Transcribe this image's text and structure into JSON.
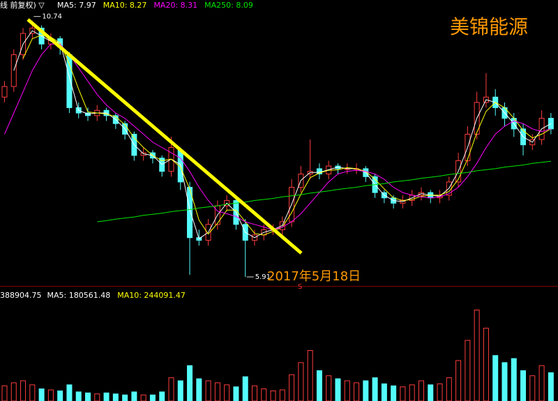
{
  "chart_data": {
    "type": "candlestick",
    "title": "线 前复权) ▽",
    "stock_name": "美锦能源",
    "date_annotation": "2017年5月18日",
    "signal": "S",
    "high_annotation": 10.74,
    "low_annotation": 5.91,
    "up_color": "#ff3c3c",
    "down_color": "#54fcfc",
    "ylim": [
      5.74,
      11.13
    ],
    "open": [
      9.3,
      9.5,
      10.1,
      10.5,
      10.6,
      10.3,
      10.4,
      10.1,
      9.1,
      9.0,
      8.95,
      9.05,
      8.95,
      8.8,
      8.6,
      8.2,
      8.25,
      8.15,
      7.9,
      8.3,
      7.6,
      6.65,
      6.6,
      6.9,
      7.25,
      7.35,
      6.9,
      6.6,
      6.7,
      6.8,
      6.8,
      6.95,
      7.6,
      7.85,
      7.95,
      7.85,
      8.0,
      7.95,
      7.95,
      7.95,
      7.8,
      7.5,
      7.4,
      7.3,
      7.35,
      7.45,
      7.5,
      7.4,
      7.45,
      7.7,
      8.1,
      8.6,
      9.2,
      9.3,
      9.1,
      8.9,
      8.7,
      8.4,
      8.5,
      8.9
    ],
    "high": [
      9.6,
      10.2,
      10.6,
      10.74,
      10.65,
      10.5,
      10.45,
      10.15,
      9.2,
      9.1,
      9.15,
      9.1,
      9.0,
      8.85,
      8.65,
      8.35,
      8.3,
      8.2,
      8.55,
      8.35,
      7.7,
      6.8,
      7.0,
      7.35,
      7.45,
      7.4,
      7.0,
      6.8,
      6.9,
      6.9,
      7.05,
      7.75,
      8.0,
      8.5,
      8.05,
      8.1,
      8.05,
      8.05,
      8.05,
      8.0,
      7.85,
      7.55,
      7.45,
      7.45,
      7.55,
      7.6,
      7.55,
      7.55,
      7.8,
      8.25,
      8.75,
      9.4,
      9.75,
      9.45,
      9.2,
      9.0,
      8.8,
      8.6,
      9.05,
      9.0
    ],
    "low": [
      9.2,
      9.4,
      10.0,
      10.4,
      10.2,
      10.2,
      10.1,
      9.0,
      8.9,
      8.85,
      8.85,
      8.85,
      8.7,
      8.5,
      8.1,
      8.1,
      8.05,
      7.8,
      7.8,
      7.55,
      5.95,
      6.5,
      6.5,
      6.8,
      7.15,
      6.8,
      5.91,
      6.5,
      6.6,
      6.7,
      6.7,
      6.85,
      7.5,
      7.75,
      7.75,
      7.75,
      7.85,
      7.85,
      7.85,
      7.7,
      7.4,
      7.3,
      7.2,
      7.2,
      7.25,
      7.35,
      7.3,
      7.3,
      7.35,
      7.6,
      8.0,
      8.5,
      9.1,
      8.95,
      8.75,
      8.55,
      8.2,
      8.3,
      8.4,
      8.6
    ],
    "close": [
      9.5,
      10.1,
      10.5,
      10.6,
      10.3,
      10.4,
      10.25,
      9.1,
      9.0,
      8.95,
      9.05,
      8.95,
      8.8,
      8.6,
      8.2,
      8.25,
      8.15,
      7.9,
      8.35,
      7.7,
      6.65,
      6.6,
      6.9,
      7.25,
      7.35,
      6.9,
      6.6,
      6.7,
      6.8,
      6.8,
      6.95,
      7.6,
      7.85,
      7.9,
      7.85,
      8.0,
      7.95,
      7.95,
      7.95,
      7.8,
      7.5,
      7.4,
      7.3,
      7.35,
      7.45,
      7.5,
      7.4,
      7.45,
      7.7,
      8.1,
      8.6,
      9.2,
      9.3,
      9.1,
      8.9,
      8.7,
      8.4,
      8.5,
      8.9,
      8.7
    ],
    "series": [
      {
        "name": "MA5",
        "legend": "MA5: 7.97",
        "color": "#ffffff",
        "values": [
          null,
          9.8,
          10.3,
          10.55,
          10.45,
          10.35,
          10.33,
          9.68,
          9.05,
          8.98,
          9.0,
          9.0,
          8.88,
          8.7,
          8.4,
          8.23,
          8.2,
          8.03,
          8.13,
          8.03,
          7.18,
          6.63,
          6.75,
          7.08,
          7.3,
          7.13,
          6.75,
          6.65,
          6.75,
          6.8,
          6.88,
          7.28,
          7.73,
          7.88,
          7.88,
          7.93,
          7.98,
          7.95,
          7.95,
          7.88,
          7.65,
          7.45,
          7.35,
          7.33,
          7.4,
          7.48,
          7.45,
          7.43,
          7.58,
          7.9,
          8.35,
          8.9,
          9.25,
          9.2,
          9.0,
          8.8,
          8.55,
          8.45,
          8.7,
          8.8
        ]
      },
      {
        "name": "MA10",
        "legend": "MA10: 8.27",
        "color": "#ffff00",
        "values": [
          null,
          null,
          10.03,
          10.4,
          10.47,
          10.43,
          10.32,
          9.92,
          9.45,
          9.02,
          9.0,
          8.98,
          8.93,
          8.78,
          8.53,
          8.35,
          8.2,
          8.1,
          8.13,
          7.98,
          7.57,
          6.98,
          6.72,
          6.92,
          7.17,
          7.17,
          6.95,
          6.73,
          6.7,
          6.77,
          6.85,
          7.12,
          7.47,
          7.78,
          7.87,
          7.92,
          7.93,
          7.97,
          7.95,
          7.9,
          7.75,
          7.57,
          7.4,
          7.35,
          7.37,
          7.43,
          7.45,
          7.45,
          7.52,
          7.75,
          8.13,
          8.63,
          9.03,
          9.2,
          9.1,
          8.9,
          8.67,
          8.53,
          8.6,
          8.7
        ]
      },
      {
        "name": "MA20",
        "legend": "MA20: 8.31",
        "color": "#ff00ff",
        "values": [
          8.6,
          9.0,
          9.4,
          9.8,
          10.1,
          10.3,
          10.3,
          10.1,
          9.85,
          9.6,
          9.35,
          9.15,
          9.0,
          8.9,
          8.75,
          8.6,
          8.45,
          8.35,
          8.25,
          8.15,
          7.9,
          7.6,
          7.35,
          7.15,
          7.1,
          7.05,
          6.95,
          6.9,
          6.85,
          6.8,
          6.85,
          6.95,
          7.1,
          7.3,
          7.5,
          7.7,
          7.85,
          7.9,
          7.92,
          7.9,
          7.85,
          7.75,
          7.6,
          7.5,
          7.45,
          7.42,
          7.4,
          7.42,
          7.48,
          7.6,
          7.8,
          8.05,
          8.35,
          8.6,
          8.75,
          8.85,
          8.8,
          8.7,
          8.65,
          8.7
        ]
      },
      {
        "name": "MA250",
        "legend": "MA250: 8.09",
        "color": "#00e600",
        "values": [
          null,
          null,
          null,
          null,
          null,
          null,
          null,
          null,
          null,
          null,
          6.95,
          6.97,
          7.0,
          7.02,
          7.04,
          7.07,
          7.09,
          7.11,
          7.14,
          7.16,
          7.18,
          7.21,
          7.23,
          7.25,
          7.28,
          7.3,
          7.32,
          7.35,
          7.37,
          7.39,
          7.42,
          7.44,
          7.46,
          7.49,
          7.51,
          7.53,
          7.56,
          7.58,
          7.6,
          7.63,
          7.65,
          7.67,
          7.7,
          7.72,
          7.74,
          7.77,
          7.79,
          7.81,
          7.84,
          7.86,
          7.88,
          7.91,
          7.93,
          7.95,
          7.98,
          8.0,
          8.02,
          8.05,
          8.07,
          8.09
        ]
      }
    ],
    "volume": {
      "label": "388904.75",
      "legend": [
        {
          "text": "MA5: 180561.48",
          "color": "#ffffff"
        },
        {
          "text": "MA10: 244091.47",
          "color": "#ffff00"
        }
      ],
      "ylim": [
        0,
        1000000
      ],
      "values": [
        150000,
        180000,
        200000,
        160000,
        120000,
        110000,
        100000,
        160000,
        90000,
        80000,
        70000,
        80000,
        70000,
        60000,
        90000,
        60000,
        60000,
        90000,
        230000,
        200000,
        350000,
        220000,
        200000,
        180000,
        160000,
        140000,
        240000,
        150000,
        120000,
        100000,
        110000,
        260000,
        380000,
        500000,
        300000,
        250000,
        220000,
        200000,
        180000,
        200000,
        230000,
        170000,
        150000,
        140000,
        160000,
        200000,
        160000,
        170000,
        230000,
        400000,
        600000,
        900000,
        720000,
        450000,
        380000,
        420000,
        300000,
        250000,
        350000,
        280000
      ]
    }
  }
}
